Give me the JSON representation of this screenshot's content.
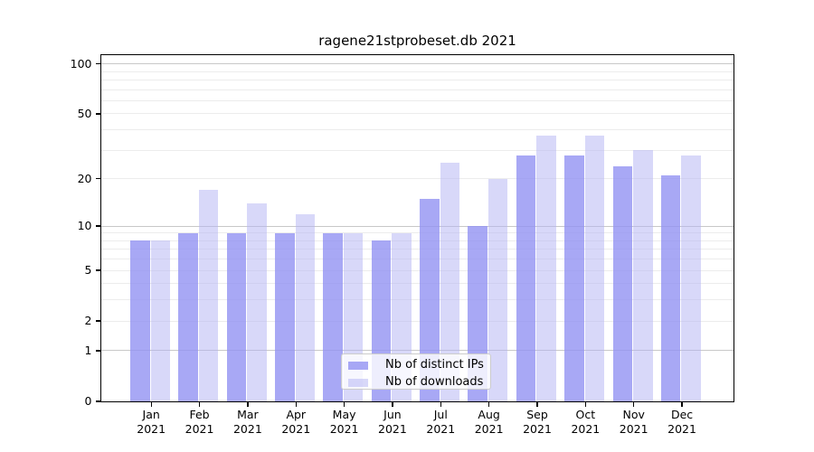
{
  "chart_data": {
    "type": "bar",
    "title": "ragene21stprobeset.db 2021",
    "scale": "log1p",
    "ylim": [
      0,
      100
    ],
    "yticks": [
      100,
      50,
      20,
      10,
      5,
      2,
      1,
      0
    ],
    "major_gridlines": [
      1,
      10,
      100
    ],
    "minor_gridlines": [
      2,
      3,
      4,
      5,
      6,
      7,
      8,
      9,
      20,
      30,
      40,
      50,
      60,
      70,
      80,
      90
    ],
    "categories": [
      "Jan",
      "Feb",
      "Mar",
      "Apr",
      "May",
      "Jun",
      "Jul",
      "Aug",
      "Sep",
      "Oct",
      "Nov",
      "Dec"
    ],
    "year": "2021",
    "series": [
      {
        "name": "Nb of distinct IPs",
        "color": "#9292f2",
        "alpha": 0.8,
        "values": [
          8,
          9,
          9,
          9,
          9,
          8,
          15,
          10,
          28,
          28,
          24,
          21
        ]
      },
      {
        "name": "Nb of downloads",
        "color": "#b2b2f3",
        "alpha": 0.5,
        "values": [
          8,
          17,
          14,
          12,
          9,
          9,
          25,
          20,
          37,
          37,
          30,
          28
        ]
      }
    ],
    "legend_position": "lower center",
    "grid": true,
    "colors": {
      "major_grid": "#c8c8c8",
      "minor_grid": "#ececec",
      "spine": "#000000",
      "background": "#ffffff"
    }
  }
}
